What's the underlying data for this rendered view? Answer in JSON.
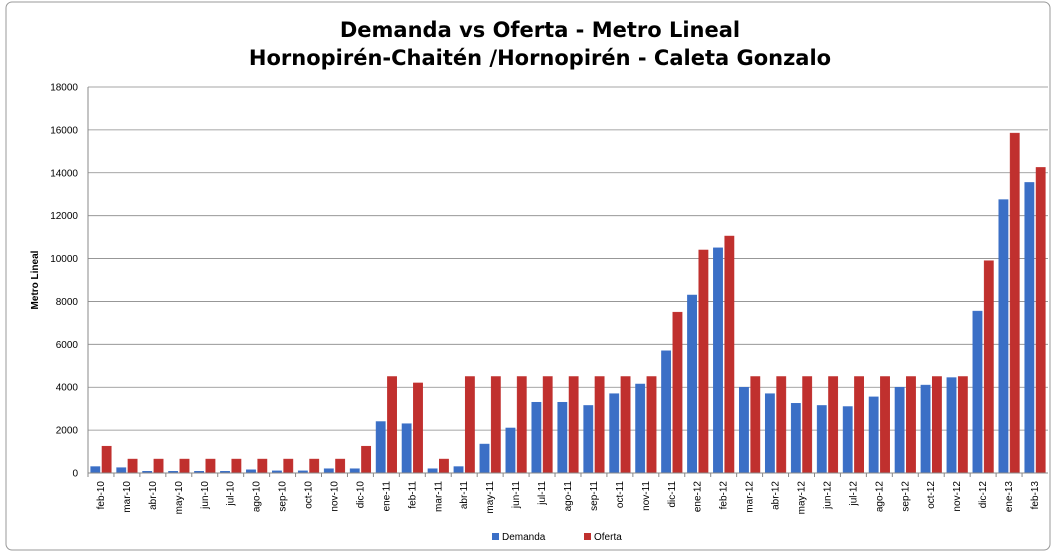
{
  "chart_data": {
    "type": "bar",
    "title": "Demanda vs Oferta - Metro Lineal",
    "subtitle": "Hornopirén-Chaitén  /Hornopirén - Caleta Gonzalo",
    "y_label": "Metro Lineal",
    "categories": [
      "feb-10",
      "mar-10",
      "abr-10",
      "may-10",
      "jun-10",
      "jul-10",
      "ago-10",
      "sep-10",
      "oct-10",
      "nov-10",
      "dic-10",
      "ene-11",
      "feb-11",
      "mar-11",
      "abr-11",
      "may-11",
      "jun-11",
      "jul-11",
      "ago-11",
      "sep-11",
      "oct-11",
      "nov-11",
      "dic-11",
      "ene-12",
      "feb-12",
      "mar-12",
      "abr-12",
      "may-12",
      "jun-12",
      "jul-12",
      "ago-12",
      "sep-12",
      "oct-12",
      "nov-12",
      "dic-12",
      "ene-13",
      "feb-13"
    ],
    "series": [
      {
        "name": "Demanda",
        "color": "#3b6fc6",
        "values": [
          300,
          250,
          80,
          80,
          80,
          80,
          150,
          100,
          100,
          200,
          200,
          2400,
          2300,
          200,
          300,
          1350,
          2100,
          3300,
          3300,
          3150,
          3700,
          4150,
          5700,
          8300,
          10500,
          4000,
          3700,
          3250,
          3150,
          3100,
          3550,
          4000,
          4100,
          4450,
          7550,
          12750,
          13550
        ]
      },
      {
        "name": "Oferta",
        "color": "#c0302e",
        "values": [
          1250,
          650,
          650,
          650,
          650,
          650,
          650,
          650,
          650,
          650,
          1250,
          4500,
          4200,
          650,
          4500,
          4500,
          4500,
          4500,
          4500,
          4500,
          4500,
          4500,
          7500,
          10400,
          11050,
          4500,
          4500,
          4500,
          4500,
          4500,
          4500,
          4500,
          4500,
          4500,
          9900,
          15850,
          14250
        ]
      }
    ],
    "ylim": [
      0,
      18000
    ],
    "yticks": [
      0,
      2000,
      4000,
      6000,
      8000,
      10000,
      12000,
      14000,
      16000,
      18000
    ],
    "grid": true,
    "legend": "bottom"
  }
}
